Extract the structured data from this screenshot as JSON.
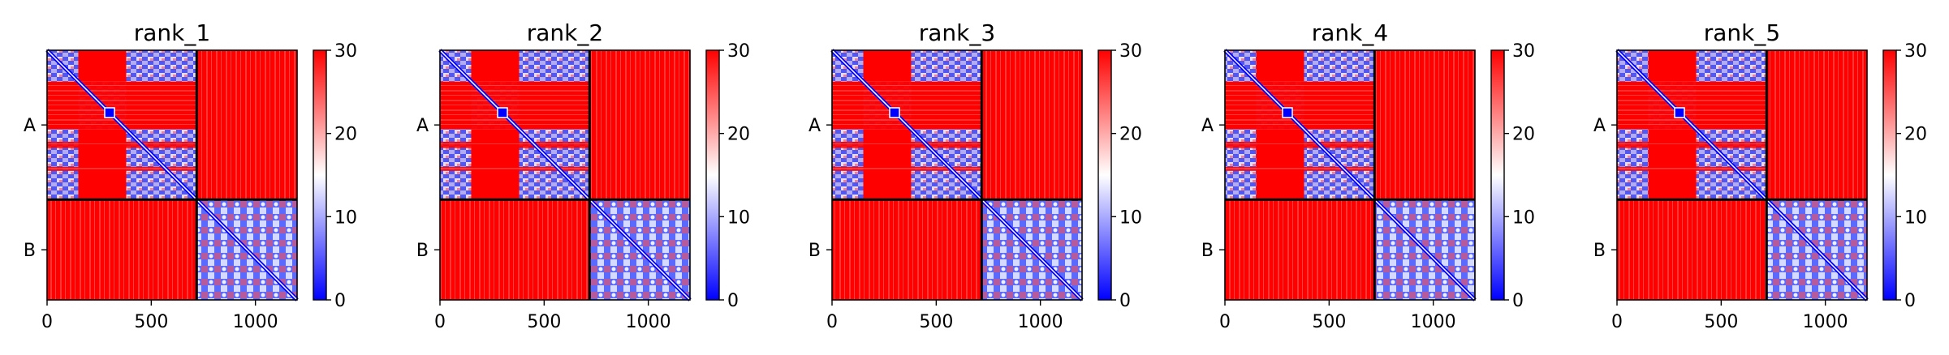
{
  "chart_data": {
    "type": "heatmap",
    "panels": [
      {
        "title": "rank_1"
      },
      {
        "title": "rank_2"
      },
      {
        "title": "rank_3"
      },
      {
        "title": "rank_4"
      },
      {
        "title": "rank_5"
      }
    ],
    "x_range": [
      0,
      1200
    ],
    "x_ticks": [
      0,
      500,
      1000
    ],
    "x_tick_labels": [
      "0",
      "500",
      "1000"
    ],
    "chain_boundary": 718,
    "chains": [
      {
        "label": "A",
        "center": 359
      },
      {
        "label": "B",
        "center": 959
      }
    ],
    "colorbar": {
      "min": 0,
      "max": 30,
      "ticks": [
        0,
        10,
        20,
        30
      ],
      "tick_labels": [
        "0",
        "10",
        "20",
        "30"
      ],
      "colormap": [
        "#0000ff",
        "#ffffff",
        "#ff0000"
      ]
    },
    "grid": false
  }
}
